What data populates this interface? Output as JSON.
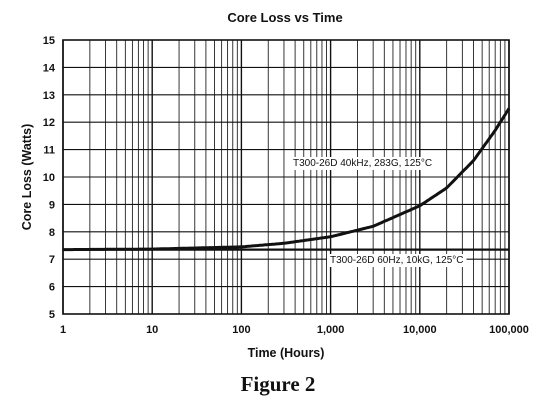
{
  "chart_data": {
    "type": "line",
    "title": "Core Loss vs Time",
    "xlabel": "Time (Hours)",
    "ylabel": "Core Loss (Watts)",
    "xscale": "log",
    "xlim": [
      1,
      100000
    ],
    "ylim": [
      5,
      15
    ],
    "x_ticks": [
      1,
      10,
      100,
      1000,
      10000,
      100000
    ],
    "x_tick_labels": [
      "1",
      "10",
      "100",
      "1,000",
      "10,000",
      "100,000"
    ],
    "y_ticks": [
      5,
      6,
      7,
      8,
      9,
      10,
      11,
      12,
      13,
      14,
      15
    ],
    "y_tick_labels": [
      "5",
      "6",
      "7",
      "8",
      "9",
      "10",
      "11",
      "12",
      "13",
      "14",
      "15"
    ],
    "grid": true,
    "series": [
      {
        "name": "T300-26D 40kHz, 283G, 125°C",
        "x": [
          1,
          10,
          100,
          300,
          1000,
          3000,
          10000,
          20000,
          40000,
          70000,
          100000
        ],
        "y": [
          7.35,
          7.37,
          7.45,
          7.58,
          7.82,
          8.2,
          8.95,
          9.6,
          10.6,
          11.7,
          12.5
        ]
      },
      {
        "name": "T300-26D 60Hz, 10kG, 125°C",
        "x": [
          1,
          100000
        ],
        "y": [
          7.35,
          7.35
        ]
      }
    ],
    "caption": "Figure 2"
  }
}
